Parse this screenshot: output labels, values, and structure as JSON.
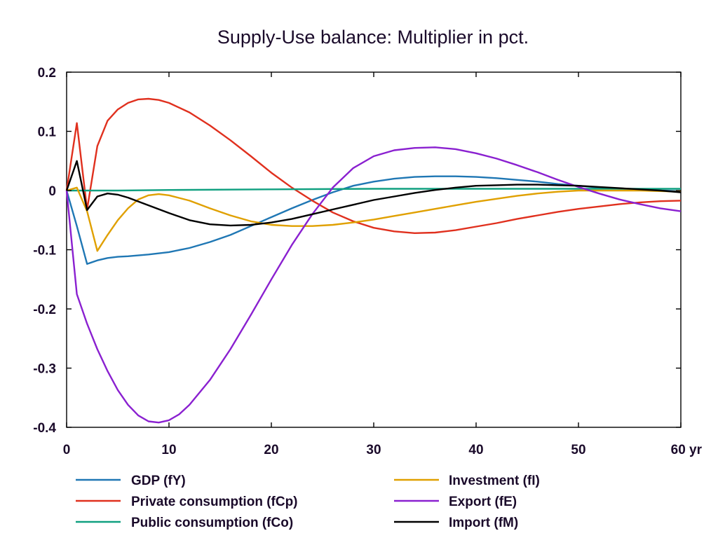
{
  "chart_data": {
    "type": "line",
    "title": "Supply-Use balance: Multiplier in pct.",
    "xlabel": "",
    "ylabel": "",
    "xlim": [
      0,
      60
    ],
    "ylim": [
      -0.4,
      0.2
    ],
    "x_ticks": [
      {
        "value": 0,
        "label": "0"
      },
      {
        "value": 10,
        "label": "10"
      },
      {
        "value": 20,
        "label": "20"
      },
      {
        "value": 30,
        "label": "30"
      },
      {
        "value": 40,
        "label": "40"
      },
      {
        "value": 50,
        "label": "50"
      },
      {
        "value": 60,
        "label": "60 yr"
      }
    ],
    "y_ticks": [
      {
        "value": 0.2,
        "label": "0.2"
      },
      {
        "value": 0.1,
        "label": "0.1"
      },
      {
        "value": 0,
        "label": "0"
      },
      {
        "value": -0.1,
        "label": "-0.1"
      },
      {
        "value": -0.2,
        "label": "-0.2"
      },
      {
        "value": -0.3,
        "label": "-0.3"
      },
      {
        "value": -0.4,
        "label": "-0.4"
      }
    ],
    "grid": false,
    "legend_position": "bottom",
    "series": [
      {
        "name": "GDP (fY)",
        "color": "#1f77b4",
        "points": [
          [
            0,
            0
          ],
          [
            1,
            -0.06
          ],
          [
            2,
            -0.124
          ],
          [
            3,
            -0.118
          ],
          [
            4,
            -0.114
          ],
          [
            5,
            -0.112
          ],
          [
            6,
            -0.111
          ],
          [
            8,
            -0.108
          ],
          [
            10,
            -0.104
          ],
          [
            12,
            -0.097
          ],
          [
            14,
            -0.087
          ],
          [
            16,
            -0.075
          ],
          [
            18,
            -0.06
          ],
          [
            20,
            -0.045
          ],
          [
            22,
            -0.03
          ],
          [
            24,
            -0.016
          ],
          [
            26,
            -0.003
          ],
          [
            28,
            0.008
          ],
          [
            30,
            0.015
          ],
          [
            32,
            0.02
          ],
          [
            34,
            0.023
          ],
          [
            36,
            0.024
          ],
          [
            38,
            0.024
          ],
          [
            40,
            0.023
          ],
          [
            42,
            0.021
          ],
          [
            44,
            0.018
          ],
          [
            46,
            0.015
          ],
          [
            48,
            0.011
          ],
          [
            50,
            0.008
          ],
          [
            52,
            0.005
          ],
          [
            54,
            0.003
          ],
          [
            56,
            0.001
          ],
          [
            58,
            0
          ],
          [
            60,
            -0.001
          ]
        ]
      },
      {
        "name": "Private consumption (fCp)",
        "color": "#e0301e",
        "points": [
          [
            0,
            0
          ],
          [
            1,
            0.114
          ],
          [
            2,
            -0.032
          ],
          [
            3,
            0.075
          ],
          [
            4,
            0.118
          ],
          [
            5,
            0.137
          ],
          [
            6,
            0.148
          ],
          [
            7,
            0.154
          ],
          [
            8,
            0.155
          ],
          [
            9,
            0.153
          ],
          [
            10,
            0.148
          ],
          [
            12,
            0.132
          ],
          [
            14,
            0.11
          ],
          [
            16,
            0.085
          ],
          [
            18,
            0.058
          ],
          [
            20,
            0.03
          ],
          [
            22,
            0.005
          ],
          [
            24,
            -0.017
          ],
          [
            26,
            -0.037
          ],
          [
            28,
            -0.052
          ],
          [
            30,
            -0.063
          ],
          [
            32,
            -0.069
          ],
          [
            34,
            -0.072
          ],
          [
            36,
            -0.071
          ],
          [
            38,
            -0.067
          ],
          [
            40,
            -0.061
          ],
          [
            42,
            -0.055
          ],
          [
            44,
            -0.048
          ],
          [
            46,
            -0.042
          ],
          [
            48,
            -0.036
          ],
          [
            50,
            -0.031
          ],
          [
            52,
            -0.027
          ],
          [
            54,
            -0.023
          ],
          [
            56,
            -0.02
          ],
          [
            58,
            -0.018
          ],
          [
            60,
            -0.017
          ]
        ]
      },
      {
        "name": "Public consumption (fCo)",
        "color": "#10a080",
        "points": [
          [
            0,
            0
          ],
          [
            5,
            0
          ],
          [
            10,
            0.001
          ],
          [
            20,
            0.002
          ],
          [
            30,
            0.003
          ],
          [
            40,
            0.003
          ],
          [
            50,
            0.003
          ],
          [
            60,
            0.003
          ]
        ]
      },
      {
        "name": "Investment (fI)",
        "color": "#e0a000",
        "points": [
          [
            0,
            0
          ],
          [
            1,
            0.005
          ],
          [
            2,
            -0.035
          ],
          [
            3,
            -0.102
          ],
          [
            4,
            -0.075
          ],
          [
            5,
            -0.05
          ],
          [
            6,
            -0.03
          ],
          [
            7,
            -0.015
          ],
          [
            8,
            -0.008
          ],
          [
            9,
            -0.006
          ],
          [
            10,
            -0.008
          ],
          [
            12,
            -0.017
          ],
          [
            14,
            -0.03
          ],
          [
            16,
            -0.042
          ],
          [
            18,
            -0.052
          ],
          [
            20,
            -0.058
          ],
          [
            22,
            -0.06
          ],
          [
            24,
            -0.06
          ],
          [
            26,
            -0.058
          ],
          [
            28,
            -0.054
          ],
          [
            30,
            -0.049
          ],
          [
            32,
            -0.043
          ],
          [
            34,
            -0.037
          ],
          [
            36,
            -0.031
          ],
          [
            38,
            -0.025
          ],
          [
            40,
            -0.019
          ],
          [
            42,
            -0.014
          ],
          [
            44,
            -0.009
          ],
          [
            46,
            -0.005
          ],
          [
            48,
            -0.002
          ],
          [
            50,
            0
          ],
          [
            52,
            0
          ],
          [
            54,
            0
          ],
          [
            56,
            0
          ],
          [
            58,
            -0.001
          ],
          [
            60,
            -0.002
          ]
        ]
      },
      {
        "name": "Export (fE)",
        "color": "#8a20d0",
        "points": [
          [
            0,
            0
          ],
          [
            1,
            -0.175
          ],
          [
            2,
            -0.225
          ],
          [
            3,
            -0.268
          ],
          [
            4,
            -0.305
          ],
          [
            5,
            -0.337
          ],
          [
            6,
            -0.362
          ],
          [
            7,
            -0.38
          ],
          [
            8,
            -0.39
          ],
          [
            9,
            -0.392
          ],
          [
            10,
            -0.388
          ],
          [
            11,
            -0.378
          ],
          [
            12,
            -0.362
          ],
          [
            14,
            -0.32
          ],
          [
            16,
            -0.268
          ],
          [
            18,
            -0.21
          ],
          [
            20,
            -0.15
          ],
          [
            22,
            -0.092
          ],
          [
            24,
            -0.04
          ],
          [
            26,
            0.005
          ],
          [
            28,
            0.038
          ],
          [
            30,
            0.058
          ],
          [
            32,
            0.068
          ],
          [
            34,
            0.072
          ],
          [
            36,
            0.073
          ],
          [
            38,
            0.07
          ],
          [
            40,
            0.063
          ],
          [
            42,
            0.054
          ],
          [
            44,
            0.043
          ],
          [
            46,
            0.031
          ],
          [
            48,
            0.018
          ],
          [
            50,
            0.006
          ],
          [
            52,
            -0.005
          ],
          [
            54,
            -0.015
          ],
          [
            56,
            -0.023
          ],
          [
            58,
            -0.03
          ],
          [
            60,
            -0.035
          ]
        ]
      },
      {
        "name": "Import (fM)",
        "color": "#000000",
        "points": [
          [
            0,
            0
          ],
          [
            1,
            0.05
          ],
          [
            2,
            -0.033
          ],
          [
            3,
            -0.01
          ],
          [
            4,
            -0.005
          ],
          [
            5,
            -0.007
          ],
          [
            6,
            -0.012
          ],
          [
            8,
            -0.025
          ],
          [
            10,
            -0.038
          ],
          [
            12,
            -0.05
          ],
          [
            14,
            -0.057
          ],
          [
            16,
            -0.059
          ],
          [
            18,
            -0.058
          ],
          [
            20,
            -0.054
          ],
          [
            22,
            -0.048
          ],
          [
            24,
            -0.04
          ],
          [
            26,
            -0.032
          ],
          [
            28,
            -0.024
          ],
          [
            30,
            -0.016
          ],
          [
            32,
            -0.01
          ],
          [
            34,
            -0.004
          ],
          [
            36,
            0.001
          ],
          [
            38,
            0.005
          ],
          [
            40,
            0.008
          ],
          [
            42,
            0.009
          ],
          [
            44,
            0.01
          ],
          [
            46,
            0.01
          ],
          [
            48,
            0.009
          ],
          [
            50,
            0.008
          ],
          [
            52,
            0.006
          ],
          [
            54,
            0.004
          ],
          [
            56,
            0.002
          ],
          [
            58,
            0
          ],
          [
            60,
            -0.003
          ]
        ]
      }
    ]
  }
}
